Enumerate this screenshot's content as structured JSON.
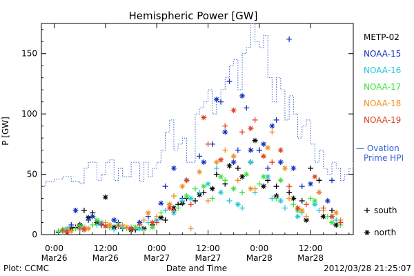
{
  "chart_data": {
    "type": "scatter",
    "title": "Hemispheric Power [GW]",
    "ylabel": "P [GW]",
    "xlabel": "Date and Time",
    "ylim": [
      0,
      175
    ],
    "xlim": [
      -3,
      70
    ],
    "yticks": [
      0,
      50,
      100,
      150
    ],
    "xticks": [
      {
        "x": 0,
        "line1": "0:00",
        "line2": "Mar26"
      },
      {
        "x": 12,
        "line1": "12:00",
        "line2": "Mar26"
      },
      {
        "x": 24,
        "line1": "0:00",
        "line2": "Mar27"
      },
      {
        "x": 36,
        "line1": "12:00",
        "line2": "Mar27"
      },
      {
        "x": 48,
        "line1": "0:00",
        "line2": "Mar28"
      },
      {
        "x": 60,
        "line1": "12:00",
        "line2": "Mar28"
      }
    ],
    "footer_left": "Plot: CCMC",
    "footer_right": "2012/03/28 21:25:07",
    "marker_legend": [
      {
        "symbol": "+",
        "label": "south"
      },
      {
        "symbol": "*",
        "label": "north"
      }
    ],
    "ovation": {
      "name_line1": "— Ovation",
      "name_line2": "Prime HPI",
      "color": "#3060d0",
      "x": [
        -3,
        -2,
        0,
        2,
        4,
        6,
        7,
        8,
        10,
        11,
        12,
        13,
        14,
        15,
        16,
        18,
        20,
        21,
        22,
        23,
        24,
        25,
        26,
        27,
        28,
        29,
        30,
        31,
        32,
        33,
        34,
        35,
        36,
        37,
        38,
        39,
        40,
        41,
        42,
        43,
        44,
        45,
        46,
        47,
        48,
        49,
        50,
        51,
        52,
        53,
        54,
        55,
        56,
        57,
        58,
        59,
        60,
        61,
        62,
        63,
        64,
        65,
        66,
        67,
        68,
        69,
        70
      ],
      "y": [
        40,
        44,
        46,
        48,
        44,
        42,
        55,
        60,
        45,
        50,
        60,
        62,
        45,
        55,
        48,
        60,
        44,
        60,
        48,
        55,
        60,
        70,
        85,
        95,
        70,
        75,
        80,
        60,
        60,
        100,
        105,
        110,
        120,
        100,
        110,
        120,
        130,
        140,
        145,
        120,
        150,
        155,
        175,
        160,
        155,
        165,
        130,
        110,
        130,
        120,
        95,
        115,
        100,
        80,
        90,
        95,
        75,
        60,
        70,
        55,
        50,
        60,
        55,
        45,
        50,
        55,
        60
      ]
    },
    "series": [
      {
        "name": "METP-02",
        "color": "#000000",
        "south": [
          [
            1,
            2
          ],
          [
            3,
            3
          ],
          [
            5,
            6
          ],
          [
            7,
            20
          ],
          [
            9,
            18
          ],
          [
            11,
            8
          ],
          [
            13,
            6
          ],
          [
            16,
            5
          ],
          [
            19,
            4
          ],
          [
            23,
            8
          ],
          [
            26,
            12
          ],
          [
            29,
            25
          ],
          [
            31,
            30
          ],
          [
            33,
            28
          ],
          [
            35,
            35
          ],
          [
            38,
            50
          ],
          [
            40,
            42
          ],
          [
            43,
            55
          ],
          [
            46,
            60
          ],
          [
            48,
            70
          ],
          [
            50,
            45
          ],
          [
            52,
            40
          ],
          [
            55,
            35
          ],
          [
            58,
            28
          ],
          [
            60,
            55
          ],
          [
            62,
            45
          ],
          [
            65,
            20
          ],
          [
            67,
            10
          ]
        ],
        "north": [
          [
            2,
            4
          ],
          [
            4,
            5
          ],
          [
            6,
            8
          ],
          [
            8,
            14
          ],
          [
            10,
            10
          ],
          [
            12,
            31
          ],
          [
            14,
            6
          ],
          [
            18,
            4
          ],
          [
            21,
            5
          ],
          [
            25,
            14
          ],
          [
            28,
            22
          ],
          [
            30,
            26
          ],
          [
            34,
            33
          ],
          [
            37,
            38
          ],
          [
            41,
            57
          ],
          [
            44,
            48
          ],
          [
            47,
            78
          ],
          [
            49,
            40
          ],
          [
            52,
            32
          ],
          [
            56,
            30
          ],
          [
            59,
            12
          ],
          [
            63,
            15
          ],
          [
            66,
            8
          ]
        ]
      },
      {
        "name": "NOAA-15",
        "color": "#1030c0",
        "south": [
          [
            4,
            8
          ],
          [
            8,
            12
          ],
          [
            15,
            10
          ],
          [
            22,
            15
          ],
          [
            26,
            40
          ],
          [
            30,
            30
          ],
          [
            34,
            65
          ],
          [
            37,
            75
          ],
          [
            39,
            110
          ],
          [
            41,
            127
          ],
          [
            43,
            70
          ],
          [
            45,
            105
          ],
          [
            48,
            70
          ],
          [
            50,
            55
          ],
          [
            52,
            95
          ],
          [
            55,
            162
          ],
          [
            58,
            40
          ],
          [
            62,
            35
          ],
          [
            65,
            45
          ]
        ],
        "north": [
          [
            5,
            20
          ],
          [
            9,
            15
          ],
          [
            14,
            12
          ],
          [
            20,
            10
          ],
          [
            25,
            26
          ],
          [
            28,
            55
          ],
          [
            31,
            45
          ],
          [
            35,
            60
          ],
          [
            38,
            112
          ],
          [
            40,
            85
          ],
          [
            42,
            60
          ],
          [
            44,
            115
          ],
          [
            46,
            70
          ],
          [
            49,
            75
          ],
          [
            51,
            90
          ],
          [
            53,
            60
          ],
          [
            56,
            55
          ],
          [
            60,
            42
          ],
          [
            64,
            28
          ]
        ]
      },
      {
        "name": "NOAA-16",
        "color": "#20c8d8",
        "south": [
          [
            2,
            2
          ],
          [
            6,
            4
          ],
          [
            10,
            8
          ],
          [
            14,
            4
          ],
          [
            18,
            6
          ],
          [
            22,
            10
          ],
          [
            26,
            20
          ],
          [
            30,
            28
          ],
          [
            34,
            35
          ],
          [
            38,
            55
          ],
          [
            41,
            28
          ],
          [
            44,
            22
          ],
          [
            47,
            35
          ],
          [
            51,
            30
          ],
          [
            54,
            22
          ],
          [
            58,
            18
          ],
          [
            62,
            20
          ],
          [
            66,
            12
          ]
        ],
        "north": [
          [
            3,
            5
          ],
          [
            7,
            6
          ],
          [
            11,
            10
          ],
          [
            16,
            6
          ],
          [
            20,
            5
          ],
          [
            24,
            12
          ],
          [
            28,
            18
          ],
          [
            32,
            30
          ],
          [
            36,
            42
          ],
          [
            39,
            35
          ],
          [
            43,
            25
          ],
          [
            46,
            60
          ],
          [
            50,
            48
          ],
          [
            53,
            28
          ],
          [
            57,
            15
          ],
          [
            61,
            25
          ],
          [
            65,
            15
          ]
        ]
      },
      {
        "name": "NOAA-17",
        "color": "#40e040",
        "south": [
          [
            1,
            3
          ],
          [
            5,
            5
          ],
          [
            9,
            8
          ],
          [
            13,
            6
          ],
          [
            17,
            5
          ],
          [
            21,
            4
          ],
          [
            25,
            18
          ],
          [
            29,
            22
          ],
          [
            33,
            38
          ],
          [
            37,
            30
          ],
          [
            40,
            45
          ],
          [
            44,
            35
          ],
          [
            48,
            42
          ],
          [
            52,
            30
          ],
          [
            56,
            25
          ],
          [
            60,
            30
          ],
          [
            64,
            15
          ],
          [
            67,
            8
          ]
        ],
        "north": [
          [
            2,
            4
          ],
          [
            6,
            7
          ],
          [
            10,
            12
          ],
          [
            15,
            8
          ],
          [
            19,
            6
          ],
          [
            23,
            6
          ],
          [
            27,
            25
          ],
          [
            31,
            32
          ],
          [
            35,
            40
          ],
          [
            39,
            48
          ],
          [
            42,
            38
          ],
          [
            45,
            50
          ],
          [
            49,
            48
          ],
          [
            53,
            45
          ],
          [
            57,
            20
          ],
          [
            61,
            28
          ],
          [
            65,
            10
          ]
        ]
      },
      {
        "name": "NOAA-18",
        "color": "#f09020",
        "south": [
          [
            3,
            4
          ],
          [
            7,
            6
          ],
          [
            12,
            10
          ],
          [
            16,
            8
          ],
          [
            21,
            12
          ],
          [
            24,
            15
          ],
          [
            28,
            32
          ],
          [
            32,
            5
          ],
          [
            36,
            28
          ],
          [
            40,
            70
          ],
          [
            43,
            45
          ],
          [
            47,
            38
          ],
          [
            51,
            85
          ],
          [
            55,
            30
          ],
          [
            59,
            15
          ],
          [
            63,
            20
          ],
          [
            67,
            12
          ]
        ],
        "north": [
          [
            4,
            3
          ],
          [
            8,
            5
          ],
          [
            13,
            8
          ],
          [
            17,
            6
          ],
          [
            22,
            18
          ],
          [
            27,
            25
          ],
          [
            30,
            40
          ],
          [
            34,
            52
          ],
          [
            38,
            60
          ],
          [
            42,
            65
          ],
          [
            46,
            38
          ],
          [
            50,
            72
          ],
          [
            54,
            55
          ],
          [
            58,
            20
          ],
          [
            62,
            35
          ],
          [
            66,
            18
          ]
        ]
      },
      {
        "name": "NOAA-19",
        "color": "#e04020",
        "south": [
          [
            2,
            3
          ],
          [
            6,
            5
          ],
          [
            11,
            9
          ],
          [
            15,
            7
          ],
          [
            20,
            8
          ],
          [
            24,
            10
          ],
          [
            28,
            20
          ],
          [
            32,
            25
          ],
          [
            36,
            75
          ],
          [
            40,
            90
          ],
          [
            44,
            85
          ],
          [
            47,
            95
          ],
          [
            51,
            60
          ],
          [
            55,
            40
          ],
          [
            59,
            25
          ],
          [
            63,
            22
          ],
          [
            67,
            10
          ]
        ],
        "north": [
          [
            3,
            2
          ],
          [
            7,
            4
          ],
          [
            12,
            7
          ],
          [
            18,
            5
          ],
          [
            23,
            10
          ],
          [
            27,
            22
          ],
          [
            31,
            45
          ],
          [
            35,
            97
          ],
          [
            39,
            62
          ],
          [
            42,
            103
          ],
          [
            46,
            88
          ],
          [
            49,
            65
          ],
          [
            53,
            70
          ],
          [
            57,
            22
          ],
          [
            61,
            48
          ],
          [
            65,
            15
          ]
        ]
      }
    ]
  }
}
